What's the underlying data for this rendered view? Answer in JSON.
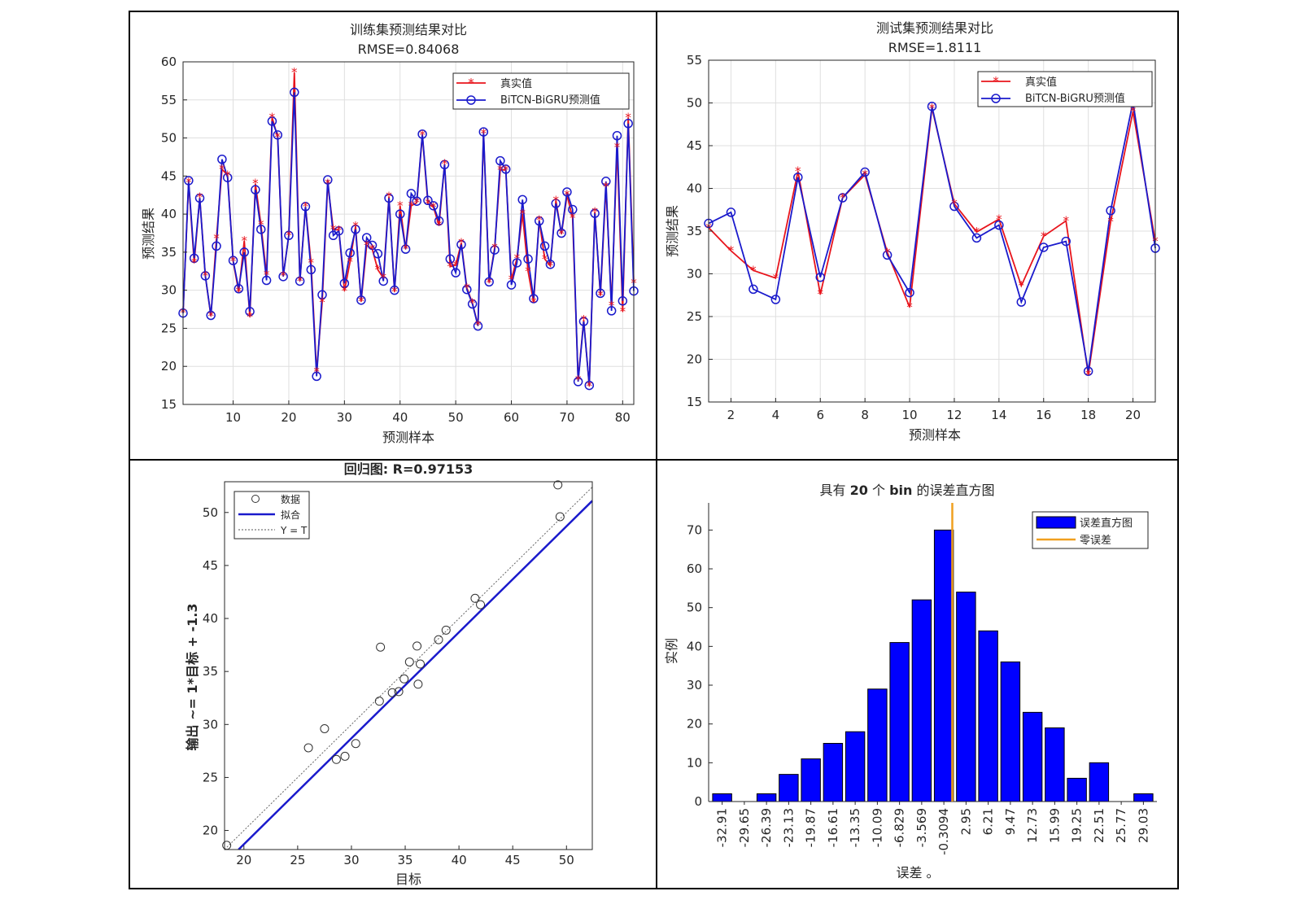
{
  "colors": {
    "true_series": "#e8141c",
    "pred_series": "#1a1acc",
    "hist_bar": "#0000ff",
    "zero_line": "#f0a020",
    "scatter_marker": "#333333"
  },
  "chart_data": [
    {
      "id": "train",
      "type": "line",
      "title": "训练集预测结果对比",
      "subtitle": "RMSE=0.84068",
      "xlabel": "预测样本",
      "ylabel": "预测结果",
      "xlim": [
        1,
        82
      ],
      "ylim": [
        15,
        60
      ],
      "xticks": [
        10,
        20,
        30,
        40,
        50,
        60,
        70,
        80
      ],
      "yticks": [
        15,
        20,
        25,
        30,
        35,
        40,
        45,
        50,
        55,
        60
      ],
      "grid": true,
      "legend_position": "top-right",
      "x": [
        1,
        2,
        3,
        4,
        5,
        6,
        7,
        8,
        9,
        10,
        11,
        12,
        13,
        14,
        15,
        16,
        17,
        18,
        19,
        20,
        21,
        22,
        23,
        24,
        25,
        26,
        27,
        28,
        29,
        30,
        31,
        32,
        33,
        34,
        35,
        36,
        37,
        38,
        39,
        40,
        41,
        42,
        43,
        44,
        45,
        46,
        47,
        48,
        49,
        50,
        51,
        52,
        53,
        54,
        55,
        56,
        57,
        58,
        59,
        60,
        61,
        62,
        63,
        64,
        65,
        66,
        67,
        68,
        69,
        70,
        71,
        72,
        73,
        74,
        75,
        76,
        77,
        78,
        79,
        80,
        81,
        82
      ],
      "series": [
        {
          "name": "真实值",
          "marker": "asterisk",
          "values": [
            27.0,
            44.2,
            33.6,
            42.2,
            31.9,
            26.6,
            36.8,
            45.9,
            45.1,
            33.8,
            29.8,
            36.5,
            26.5,
            44.0,
            38.6,
            32.0,
            52.7,
            50.1,
            31.9,
            37.2,
            58.6,
            31.2,
            41.0,
            33.6,
            19.3,
            28.4,
            44.0,
            38.0,
            37.9,
            29.9,
            33.7,
            38.4,
            28.5,
            35.9,
            35.4,
            32.7,
            31.6,
            42.3,
            29.8,
            41.1,
            35.4,
            41.1,
            41.5,
            50.4,
            41.4,
            40.9,
            38.5,
            46.6,
            33.1,
            33.3,
            36.2,
            30.3,
            28.3,
            25.4,
            50.6,
            31.0,
            35.6,
            45.8,
            45.8,
            31.4,
            34.2,
            40.0,
            32.5,
            28.4,
            39.2,
            34.1,
            33.2,
            41.8,
            37.4,
            42.5,
            39.5,
            18.2,
            26.1,
            17.4,
            40.3,
            29.3,
            43.6,
            28.0,
            48.8,
            27.2,
            52.7,
            30.9
          ]
        },
        {
          "name": "BiTCN-BiGRU预测值",
          "marker": "circle",
          "values": [
            27.0,
            44.4,
            34.2,
            42.1,
            31.9,
            26.7,
            35.8,
            47.2,
            44.8,
            33.9,
            30.2,
            35.0,
            27.2,
            43.2,
            38.0,
            31.3,
            52.2,
            50.4,
            31.8,
            37.2,
            56.0,
            31.2,
            41.0,
            32.7,
            18.7,
            29.4,
            44.5,
            37.2,
            37.8,
            30.9,
            34.9,
            38.0,
            28.7,
            36.9,
            35.9,
            34.8,
            31.2,
            42.1,
            30.0,
            40.0,
            35.4,
            42.7,
            41.7,
            50.5,
            41.8,
            41.1,
            39.1,
            46.5,
            34.1,
            32.3,
            36.0,
            30.1,
            28.2,
            25.3,
            50.8,
            31.1,
            35.3,
            47.0,
            45.9,
            30.7,
            33.6,
            41.9,
            34.1,
            28.9,
            39.1,
            35.8,
            33.4,
            41.4,
            37.5,
            42.9,
            40.6,
            18.0,
            25.9,
            17.5,
            40.1,
            29.6,
            44.3,
            27.3,
            50.3,
            28.6,
            51.9,
            29.9
          ]
        }
      ]
    },
    {
      "id": "test",
      "type": "line",
      "title": "测试集预测结果对比",
      "subtitle": "RMSE=1.8111",
      "xlabel": "预测样本",
      "ylabel": "预测结果",
      "xlim": [
        1,
        21
      ],
      "ylim": [
        15,
        55
      ],
      "xticks": [
        2,
        4,
        6,
        8,
        10,
        12,
        14,
        16,
        18,
        20
      ],
      "yticks": [
        15,
        20,
        25,
        30,
        35,
        40,
        45,
        50,
        55
      ],
      "grid": true,
      "legend_position": "top-right",
      "x": [
        1,
        2,
        3,
        4,
        5,
        6,
        7,
        8,
        9,
        10,
        11,
        12,
        13,
        14,
        15,
        16,
        17,
        18,
        19,
        20,
        21
      ],
      "series": [
        {
          "name": "真实值",
          "marker": "asterisk",
          "values": [
            35.4,
            32.7,
            30.4,
            29.5,
            42.0,
            27.6,
            38.9,
            41.6,
            32.5,
            26.1,
            49.4,
            38.2,
            34.9,
            36.4,
            28.6,
            34.4,
            36.2,
            18.2,
            36.1,
            49.0,
            33.8
          ]
        },
        {
          "name": "BiTCN-BiGRU预测值",
          "marker": "circle",
          "values": [
            35.9,
            37.2,
            28.2,
            27.0,
            41.3,
            29.6,
            38.9,
            41.9,
            32.2,
            27.8,
            49.6,
            37.9,
            34.2,
            35.7,
            26.7,
            33.1,
            33.8,
            18.6,
            37.4,
            50.1,
            33.0
          ]
        }
      ]
    },
    {
      "id": "regression",
      "type": "scatter",
      "title": "回归图: R=0.97153",
      "xlabel": "目标",
      "ylabel": "输出 ~= 1*目标 + -1.3",
      "xlim": [
        18.2,
        52.4
      ],
      "ylim": [
        18.2,
        52.9
      ],
      "xticks": [
        20,
        25,
        30,
        35,
        40,
        45,
        50
      ],
      "yticks": [
        20,
        25,
        30,
        35,
        40,
        45,
        50
      ],
      "grid": false,
      "legend_position": "top-left",
      "legend": [
        "数据",
        "拟合",
        "Y = T"
      ],
      "fit": {
        "slope": 1.0,
        "intercept": -1.3
      },
      "points": [
        [
          18.4,
          18.6
        ],
        [
          26.0,
          27.8
        ],
        [
          27.5,
          29.6
        ],
        [
          28.6,
          26.7
        ],
        [
          29.4,
          27.0
        ],
        [
          30.4,
          28.2
        ],
        [
          32.6,
          32.2
        ],
        [
          32.7,
          37.3
        ],
        [
          33.8,
          33.0
        ],
        [
          34.4,
          33.1
        ],
        [
          34.9,
          34.3
        ],
        [
          35.4,
          35.9
        ],
        [
          36.1,
          37.4
        ],
        [
          36.2,
          33.8
        ],
        [
          36.4,
          35.7
        ],
        [
          38.1,
          38.0
        ],
        [
          38.8,
          38.9
        ],
        [
          41.5,
          41.9
        ],
        [
          42.0,
          41.3
        ],
        [
          49.2,
          52.6
        ],
        [
          49.4,
          49.6
        ]
      ]
    },
    {
      "id": "histogram",
      "type": "bar",
      "title_prefix": "具有",
      "title_bins": "20",
      "title_mid": "个",
      "title_bin_word": "bin",
      "title_suffix": "的误差直方图",
      "xlabel": "误差",
      "xlabel_suffix": "。",
      "ylabel": "实例",
      "ylim": [
        0,
        77
      ],
      "yticks": [
        0,
        10,
        20,
        30,
        40,
        50,
        60,
        70
      ],
      "grid": false,
      "legend_position": "top-right",
      "legend": [
        "误差直方图",
        "零误差"
      ],
      "zero_error_index": 10.88,
      "categories": [
        "-32.91",
        "-29.65",
        "-26.39",
        "-23.13",
        "-19.87",
        "-16.61",
        "-13.35",
        "-10.09",
        "-6.829",
        "-3.569",
        "-0.3094",
        "2.95",
        "6.21",
        "9.47",
        "12.73",
        "15.99",
        "19.25",
        "22.51",
        "25.77",
        "29.03"
      ],
      "values": [
        2,
        0,
        2,
        7,
        11,
        15,
        18,
        29,
        41,
        52,
        70,
        54,
        44,
        36,
        23,
        19,
        6,
        10,
        0,
        2
      ]
    }
  ]
}
